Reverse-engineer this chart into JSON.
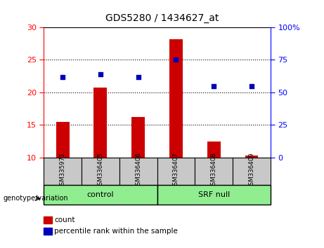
{
  "title": "GDS5280 / 1434627_at",
  "samples": [
    "GSM335971",
    "GSM336405",
    "GSM336406",
    "GSM336407",
    "GSM336408",
    "GSM336409"
  ],
  "count_values": [
    15.5,
    20.7,
    16.2,
    28.2,
    12.5,
    10.3
  ],
  "percentile_values": [
    62,
    64,
    62,
    75,
    55,
    55
  ],
  "ylim_left": [
    10,
    30
  ],
  "ylim_right": [
    0,
    100
  ],
  "yticks_left": [
    10,
    15,
    20,
    25,
    30
  ],
  "yticks_right": [
    0,
    25,
    50,
    75,
    100
  ],
  "ytick_labels_right": [
    "0",
    "25",
    "50",
    "75",
    "100%"
  ],
  "bar_color": "#cc0000",
  "dot_color": "#0000bb",
  "control_label": "control",
  "srf_label": "SRF null",
  "group_bg_color": "#c8c8c8",
  "green_fill": "#90ee90",
  "legend_count_label": "count",
  "legend_pct_label": "percentile rank within the sample",
  "xlabel_left": "genotype/variation",
  "bar_width": 0.35,
  "baseline": 10
}
